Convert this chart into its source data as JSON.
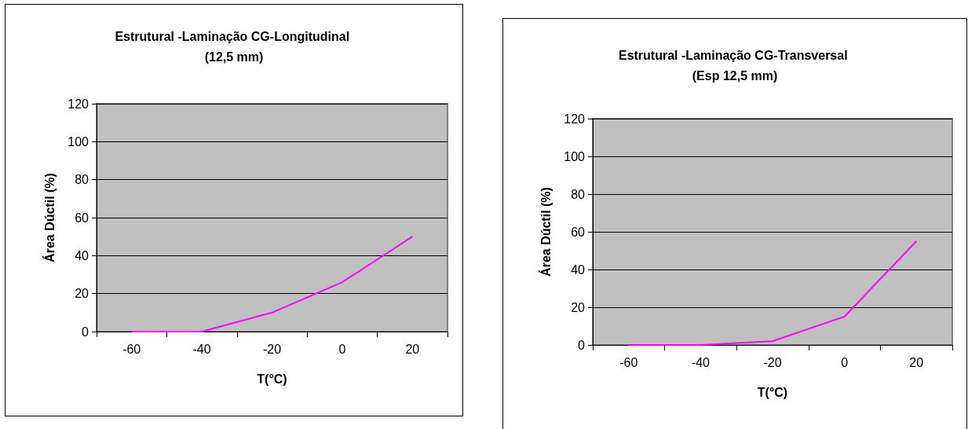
{
  "chart_data": [
    {
      "type": "line",
      "title": "Estrutural -Laminação CG-Longitudinal (12,5 mm)",
      "xlabel": "T(°C)",
      "ylabel": "Área Dúctil (%)",
      "categories": [
        "-60",
        "-40",
        "-20",
        "0",
        "20"
      ],
      "series": [
        {
          "color": "#ff00ff",
          "values": [
            0,
            0,
            10,
            26,
            50
          ]
        }
      ],
      "ylim": [
        0,
        120
      ],
      "yticks": [
        0,
        20,
        40,
        60,
        80,
        100,
        120
      ],
      "grid": "y",
      "marker": "none"
    },
    {
      "type": "line",
      "title": "Estrutural -Laminação CG-Transversal (Esp 12,5 mm)",
      "xlabel": "T(°C)",
      "ylabel": "Área Dúctil (%)",
      "categories": [
        "-60",
        "-40",
        "-20",
        "0",
        "20"
      ],
      "series": [
        {
          "color": "#ff00ff",
          "values": [
            0,
            0,
            2,
            15,
            55
          ]
        }
      ],
      "ylim": [
        0,
        120
      ],
      "yticks": [
        0,
        20,
        40,
        60,
        80,
        100,
        120
      ],
      "grid": "y",
      "marker": "none"
    }
  ]
}
